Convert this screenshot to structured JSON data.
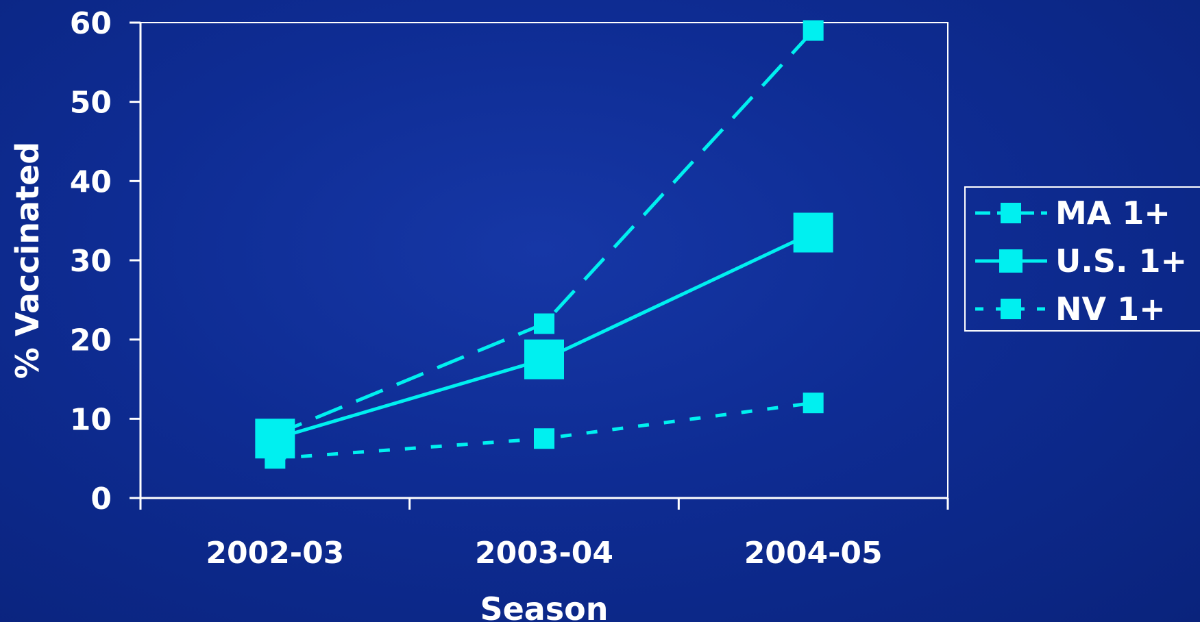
{
  "chart_data": {
    "type": "line",
    "title": "",
    "xlabel": "Season",
    "ylabel": "% Vaccinated",
    "categories": [
      "2002-03",
      "2003-04",
      "2004-05"
    ],
    "ylim": [
      0,
      60
    ],
    "yticks": [
      "0",
      "10",
      "20",
      "30",
      "40",
      "50",
      "60"
    ],
    "grid": false,
    "legend_position": "right",
    "series": [
      {
        "name": "MA 1+",
        "values": [
          8,
          22,
          59
        ],
        "style": "dashed",
        "marker": "small-square",
        "color": "#00f0f0"
      },
      {
        "name": "U.S. 1+",
        "values": [
          7.5,
          17.5,
          33.5
        ],
        "style": "solid",
        "marker": "large-square",
        "color": "#00f0f0"
      },
      {
        "name": "NV 1+",
        "values": [
          5,
          7.5,
          12
        ],
        "style": "dotted",
        "marker": "small-square",
        "color": "#00f0f0"
      }
    ],
    "colors": {
      "background": "#0e2c93",
      "axis": "#ffffff",
      "series": "#00f0f0"
    }
  }
}
